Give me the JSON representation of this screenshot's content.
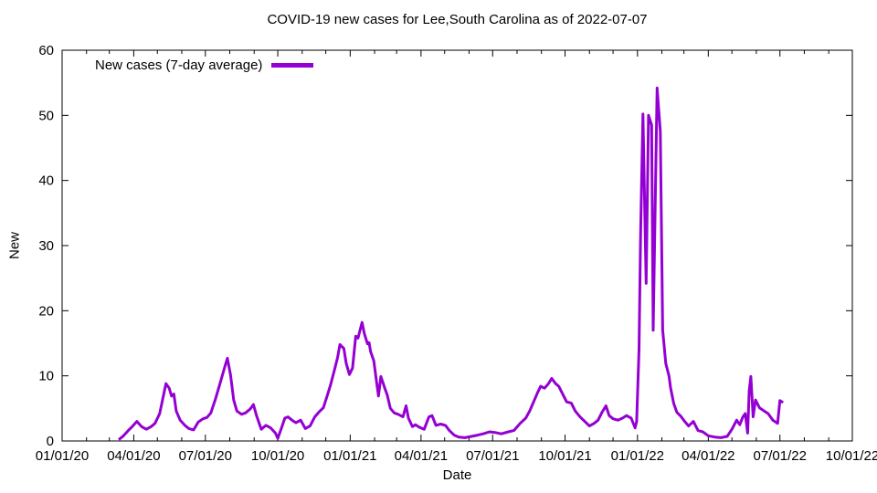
{
  "chart_data": {
    "type": "line",
    "title": "COVID-19 new cases for Lee,South Carolina as of 2022-07-07",
    "xlabel": "Date",
    "ylabel": "New",
    "ylim": [
      0,
      60
    ],
    "xlim": [
      "2020-01-01",
      "2022-10-01"
    ],
    "grid": false,
    "y_ticks": [
      0,
      10,
      20,
      30,
      40,
      50,
      60
    ],
    "x_ticks": [
      {
        "label": "01/01/20",
        "date": "2020-01-01"
      },
      {
        "label": "04/01/20",
        "date": "2020-04-01"
      },
      {
        "label": "07/01/20",
        "date": "2020-07-01"
      },
      {
        "label": "10/01/20",
        "date": "2020-10-01"
      },
      {
        "label": "01/01/21",
        "date": "2021-01-01"
      },
      {
        "label": "04/01/21",
        "date": "2021-04-01"
      },
      {
        "label": "07/01/21",
        "date": "2021-07-01"
      },
      {
        "label": "10/01/21",
        "date": "2021-10-01"
      },
      {
        "label": "01/01/22",
        "date": "2022-01-01"
      },
      {
        "label": "04/01/22",
        "date": "2022-04-01"
      },
      {
        "label": "07/01/22",
        "date": "2022-07-01"
      },
      {
        "label": "10/01/22",
        "date": "2022-10-01"
      }
    ],
    "legend": {
      "position": "top-left",
      "entries": [
        {
          "label": "New cases (7-day average)",
          "color": "#9400D3"
        }
      ]
    },
    "series": [
      {
        "name": "New cases (7-day average)",
        "color": "#9400D3",
        "points": [
          [
            "2020-03-13",
            0.2
          ],
          [
            "2020-03-19",
            0.8
          ],
          [
            "2020-03-25",
            1.6
          ],
          [
            "2020-03-30",
            2.2
          ],
          [
            "2020-04-05",
            3.0
          ],
          [
            "2020-04-11",
            2.2
          ],
          [
            "2020-04-17",
            1.8
          ],
          [
            "2020-04-23",
            2.2
          ],
          [
            "2020-04-28",
            2.7
          ],
          [
            "2020-05-04",
            4.2
          ],
          [
            "2020-05-10",
            7.7
          ],
          [
            "2020-05-12",
            8.8
          ],
          [
            "2020-05-16",
            8.1
          ],
          [
            "2020-05-19",
            6.9
          ],
          [
            "2020-05-22",
            7.2
          ],
          [
            "2020-05-25",
            4.6
          ],
          [
            "2020-05-30",
            3.2
          ],
          [
            "2020-06-05",
            2.4
          ],
          [
            "2020-06-10",
            1.9
          ],
          [
            "2020-06-16",
            1.7
          ],
          [
            "2020-06-22",
            2.9
          ],
          [
            "2020-06-28",
            3.4
          ],
          [
            "2020-07-03",
            3.6
          ],
          [
            "2020-07-08",
            4.3
          ],
          [
            "2020-07-14",
            6.5
          ],
          [
            "2020-07-20",
            9.0
          ],
          [
            "2020-07-26",
            11.5
          ],
          [
            "2020-07-29",
            12.7
          ],
          [
            "2020-08-02",
            10.1
          ],
          [
            "2020-08-06",
            6.3
          ],
          [
            "2020-08-10",
            4.6
          ],
          [
            "2020-08-16",
            4.1
          ],
          [
            "2020-08-21",
            4.3
          ],
          [
            "2020-08-27",
            4.9
          ],
          [
            "2020-08-31",
            5.6
          ],
          [
            "2020-09-04",
            3.9
          ],
          [
            "2020-09-10",
            1.8
          ],
          [
            "2020-09-16",
            2.4
          ],
          [
            "2020-09-22",
            2.0
          ],
          [
            "2020-09-28",
            1.2
          ],
          [
            "2020-10-01",
            0.4
          ],
          [
            "2020-10-06",
            2.1
          ],
          [
            "2020-10-10",
            3.5
          ],
          [
            "2020-10-14",
            3.7
          ],
          [
            "2020-10-19",
            3.2
          ],
          [
            "2020-10-24",
            2.8
          ],
          [
            "2020-10-30",
            3.2
          ],
          [
            "2020-11-05",
            1.9
          ],
          [
            "2020-11-11",
            2.3
          ],
          [
            "2020-11-17",
            3.7
          ],
          [
            "2020-11-22",
            4.4
          ],
          [
            "2020-11-28",
            5.1
          ],
          [
            "2020-12-04",
            7.4
          ],
          [
            "2020-12-07",
            8.6
          ],
          [
            "2020-12-12",
            10.9
          ],
          [
            "2020-12-16",
            12.8
          ],
          [
            "2020-12-19",
            14.8
          ],
          [
            "2020-12-24",
            14.2
          ],
          [
            "2020-12-27",
            11.9
          ],
          [
            "2020-12-31",
            10.2
          ],
          [
            "2021-01-04",
            11.2
          ],
          [
            "2021-01-08",
            16.1
          ],
          [
            "2021-01-11",
            15.8
          ],
          [
            "2021-01-16",
            18.2
          ],
          [
            "2021-01-19",
            16.5
          ],
          [
            "2021-01-23",
            14.9
          ],
          [
            "2021-01-25",
            15.1
          ],
          [
            "2021-01-27",
            13.7
          ],
          [
            "2021-01-31",
            12.3
          ],
          [
            "2021-02-03",
            9.5
          ],
          [
            "2021-02-06",
            6.9
          ],
          [
            "2021-02-09",
            9.9
          ],
          [
            "2021-02-14",
            8.1
          ],
          [
            "2021-02-17",
            7.1
          ],
          [
            "2021-02-21",
            5.0
          ],
          [
            "2021-02-26",
            4.3
          ],
          [
            "2021-03-03",
            4.1
          ],
          [
            "2021-03-09",
            3.7
          ],
          [
            "2021-03-13",
            5.4
          ],
          [
            "2021-03-16",
            3.5
          ],
          [
            "2021-03-21",
            2.2
          ],
          [
            "2021-03-25",
            2.5
          ],
          [
            "2021-03-30",
            2.1
          ],
          [
            "2021-04-05",
            1.8
          ],
          [
            "2021-04-11",
            3.7
          ],
          [
            "2021-04-15",
            3.9
          ],
          [
            "2021-04-20",
            2.4
          ],
          [
            "2021-04-26",
            2.6
          ],
          [
            "2021-05-02",
            2.4
          ],
          [
            "2021-05-07",
            1.6
          ],
          [
            "2021-05-13",
            0.9
          ],
          [
            "2021-05-19",
            0.6
          ],
          [
            "2021-05-27",
            0.5
          ],
          [
            "2021-06-04",
            0.7
          ],
          [
            "2021-06-12",
            0.9
          ],
          [
            "2021-06-19",
            1.1
          ],
          [
            "2021-06-27",
            1.4
          ],
          [
            "2021-07-04",
            1.3
          ],
          [
            "2021-07-12",
            1.1
          ],
          [
            "2021-07-21",
            1.4
          ],
          [
            "2021-07-28",
            1.6
          ],
          [
            "2021-08-05",
            2.7
          ],
          [
            "2021-08-12",
            3.5
          ],
          [
            "2021-08-17",
            4.6
          ],
          [
            "2021-08-22",
            6.0
          ],
          [
            "2021-08-27",
            7.4
          ],
          [
            "2021-08-31",
            8.4
          ],
          [
            "2021-09-05",
            8.1
          ],
          [
            "2021-09-10",
            8.8
          ],
          [
            "2021-09-14",
            9.6
          ],
          [
            "2021-09-19",
            8.8
          ],
          [
            "2021-09-23",
            8.4
          ],
          [
            "2021-09-28",
            7.2
          ],
          [
            "2021-10-03",
            6.0
          ],
          [
            "2021-10-09",
            5.8
          ],
          [
            "2021-10-14",
            4.6
          ],
          [
            "2021-10-20",
            3.7
          ],
          [
            "2021-10-26",
            3.0
          ],
          [
            "2021-11-01",
            2.3
          ],
          [
            "2021-11-07",
            2.7
          ],
          [
            "2021-11-12",
            3.2
          ],
          [
            "2021-11-17",
            4.4
          ],
          [
            "2021-11-22",
            5.4
          ],
          [
            "2021-11-26",
            3.9
          ],
          [
            "2021-12-01",
            3.4
          ],
          [
            "2021-12-07",
            3.2
          ],
          [
            "2021-12-13",
            3.5
          ],
          [
            "2021-12-18",
            3.9
          ],
          [
            "2021-12-24",
            3.5
          ],
          [
            "2021-12-29",
            2.0
          ],
          [
            "2021-12-31",
            3.0
          ],
          [
            "2022-01-03",
            14.0
          ],
          [
            "2022-01-05",
            31.5
          ],
          [
            "2022-01-08",
            50.2
          ],
          [
            "2022-01-12",
            24.2
          ],
          [
            "2022-01-15",
            50.0
          ],
          [
            "2022-01-19",
            48.5
          ],
          [
            "2022-01-21",
            17.0
          ],
          [
            "2022-01-26",
            54.2
          ],
          [
            "2022-01-30",
            47.5
          ],
          [
            "2022-02-02",
            17.0
          ],
          [
            "2022-02-06",
            11.9
          ],
          [
            "2022-02-10",
            10.0
          ],
          [
            "2022-02-12",
            8.2
          ],
          [
            "2022-02-16",
            5.8
          ],
          [
            "2022-02-20",
            4.4
          ],
          [
            "2022-02-25",
            3.8
          ],
          [
            "2022-03-02",
            3.0
          ],
          [
            "2022-03-07",
            2.3
          ],
          [
            "2022-03-13",
            3.0
          ],
          [
            "2022-03-19",
            1.6
          ],
          [
            "2022-03-25",
            1.4
          ],
          [
            "2022-04-01",
            0.8
          ],
          [
            "2022-04-09",
            0.6
          ],
          [
            "2022-04-17",
            0.5
          ],
          [
            "2022-04-25",
            0.7
          ],
          [
            "2022-05-01",
            1.8
          ],
          [
            "2022-05-07",
            3.2
          ],
          [
            "2022-05-11",
            2.5
          ],
          [
            "2022-05-15",
            3.7
          ],
          [
            "2022-05-18",
            4.2
          ],
          [
            "2022-05-21",
            1.2
          ],
          [
            "2022-05-23",
            7.7
          ],
          [
            "2022-05-25",
            9.9
          ],
          [
            "2022-05-28",
            3.7
          ],
          [
            "2022-05-31",
            6.3
          ],
          [
            "2022-06-05",
            5.1
          ],
          [
            "2022-06-11",
            4.6
          ],
          [
            "2022-06-16",
            4.2
          ],
          [
            "2022-06-22",
            3.2
          ],
          [
            "2022-06-28",
            2.7
          ],
          [
            "2022-07-01",
            6.2
          ],
          [
            "2022-07-05",
            5.9
          ]
        ]
      }
    ]
  }
}
